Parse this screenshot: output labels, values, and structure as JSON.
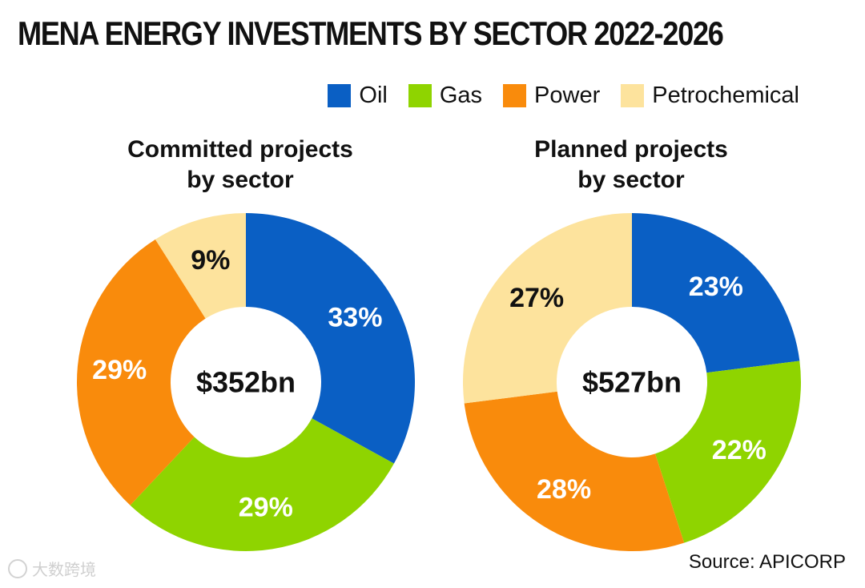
{
  "title": "MENA ENERGY INVESTMENTS BY SECTOR 2022-2026",
  "legend": [
    {
      "label": "Oil",
      "color": "#0a5fc4"
    },
    {
      "label": "Gas",
      "color": "#8fd400"
    },
    {
      "label": "Power",
      "color": "#f98b0c"
    },
    {
      "label": "Petrochemical",
      "color": "#fde39d"
    }
  ],
  "source": "Source: APICORP",
  "watermark": "大数跨境",
  "chart_data": [
    {
      "type": "pie",
      "title_lines": [
        "Committed projects",
        "by sector"
      ],
      "center_label": "$352bn",
      "categories": [
        "Oil",
        "Gas",
        "Power",
        "Petrochemical"
      ],
      "values": [
        33,
        29,
        29,
        9
      ],
      "labels": [
        "33%",
        "29%",
        "29%",
        "9%"
      ]
    },
    {
      "type": "pie",
      "title_lines": [
        "Planned projects",
        "by sector"
      ],
      "center_label": "$527bn",
      "categories": [
        "Oil",
        "Gas",
        "Power",
        "Petrochemical"
      ],
      "values": [
        23,
        22,
        28,
        27
      ],
      "labels": [
        "23%",
        "22%",
        "28%",
        "27%"
      ]
    }
  ]
}
